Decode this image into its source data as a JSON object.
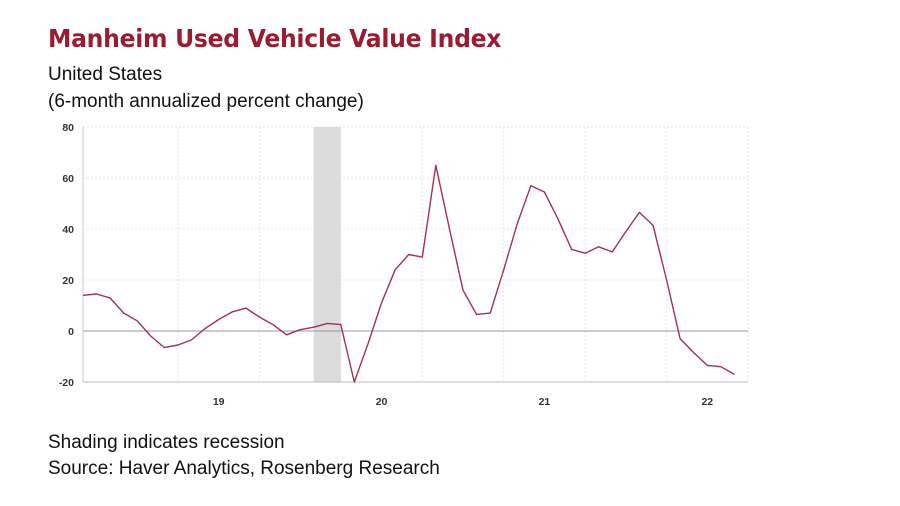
{
  "header": {
    "title": "Manheim Used Vehicle Value Index",
    "subtitle_1": "United States",
    "subtitle_2": "(6-month annualized percent change)"
  },
  "footer": {
    "note": "Shading indicates recession",
    "source": "Source: Haver Analytics, Rosenberg Research"
  },
  "colors": {
    "title": "#9b1b30",
    "line": "#a3324a",
    "recession": "#dcdcdc",
    "zero_line": "#999999",
    "grid": "#e6e6e6"
  },
  "chart_data": {
    "type": "line",
    "title": "Manheim Used Vehicle Value Index",
    "xlabel": "",
    "ylabel": "",
    "ylim": [
      -20,
      80
    ],
    "xlim": [
      2018.167,
      2022.25
    ],
    "yticks": [
      -20,
      0,
      20,
      40,
      60,
      80
    ],
    "xticks": [
      {
        "value": 2019.0,
        "label": "19"
      },
      {
        "value": 2020.0,
        "label": "20"
      },
      {
        "value": 2021.0,
        "label": "21"
      },
      {
        "value": 2022.0,
        "label": "22"
      }
    ],
    "recession": [
      2019.583,
      2019.75
    ],
    "grid": true,
    "series": [
      {
        "name": "6-month annualized percent change",
        "x": [
          2018.167,
          2018.25,
          2018.333,
          2018.417,
          2018.5,
          2018.583,
          2018.667,
          2018.75,
          2018.833,
          2018.917,
          2019.0,
          2019.083,
          2019.167,
          2019.25,
          2019.333,
          2019.417,
          2019.5,
          2019.583,
          2019.667,
          2019.75,
          2019.833,
          2019.917,
          2020.0,
          2020.083,
          2020.167,
          2020.25,
          2020.333,
          2020.417,
          2020.5,
          2020.583,
          2020.667,
          2020.75,
          2020.833,
          2020.917,
          2021.0,
          2021.083,
          2021.167,
          2021.25,
          2021.333,
          2021.417,
          2021.5,
          2021.583,
          2021.667,
          2021.75,
          2021.833,
          2021.917,
          2022.0,
          2022.083,
          2022.167
        ],
        "y": [
          14,
          14.5,
          13,
          7,
          4,
          -2,
          -6.5,
          -5.5,
          -3.5,
          1,
          4.5,
          7.5,
          9,
          5.5,
          2.5,
          -1.5,
          0.5,
          1.5,
          3,
          2.5,
          -20,
          -5,
          11,
          24,
          30,
          29,
          65,
          40,
          16,
          6.5,
          7,
          24,
          42,
          57,
          54.5,
          44,
          32,
          30.5,
          33,
          31,
          39,
          46.5,
          41.5,
          20,
          -3,
          -8.5,
          -13.5,
          -14,
          -17
        ]
      }
    ]
  }
}
